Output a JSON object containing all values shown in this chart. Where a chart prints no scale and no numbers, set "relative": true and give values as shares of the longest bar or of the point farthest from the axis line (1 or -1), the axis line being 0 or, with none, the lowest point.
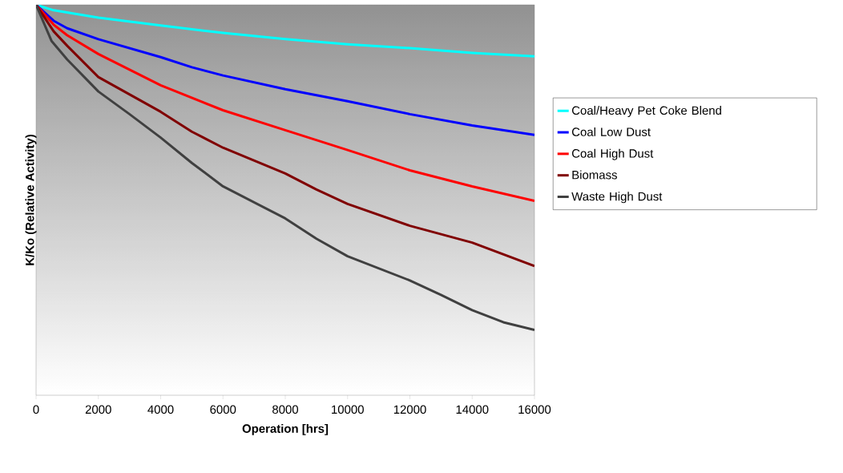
{
  "chart_data": {
    "type": "line",
    "relative": true,
    "xlabel": "Operation [hrs]",
    "ylabel": "K/Ko (Relative Activity)",
    "xlim": [
      0,
      16000
    ],
    "xticks": [
      0,
      2000,
      4000,
      6000,
      8000,
      10000,
      12000,
      14000,
      16000
    ],
    "tick_labels": "x",
    "grid": false,
    "legend": "right",
    "marker": "none",
    "line_style": "solid",
    "series": [
      {
        "name": "Coal/Heavy Pet Coke Blend",
        "color": "#00ffff",
        "x": [
          0,
          566,
          2000,
          4000,
          6000,
          8000,
          10000,
          12000,
          14000,
          16000
        ],
        "values": [
          1,
          0.986,
          0.967,
          0.947,
          0.928,
          0.912,
          0.899,
          0.889,
          0.877,
          0.868
        ]
      },
      {
        "name": "Coal Low Dust",
        "color": "#0000ff",
        "x": [
          0,
          566,
          1000,
          2000,
          4000,
          5000,
          6000,
          8000,
          10000,
          12000,
          14000,
          16000
        ],
        "values": [
          1,
          0.959,
          0.94,
          0.912,
          0.866,
          0.84,
          0.819,
          0.784,
          0.753,
          0.72,
          0.691,
          0.667
        ]
      },
      {
        "name": "Coal High Dust",
        "color": "#ff0000",
        "x": [
          0,
          566,
          1000,
          2000,
          4000,
          6000,
          8000,
          10000,
          12000,
          14000,
          16000
        ],
        "values": [
          1,
          0.949,
          0.922,
          0.874,
          0.794,
          0.73,
          0.679,
          0.628,
          0.576,
          0.535,
          0.498
        ]
      },
      {
        "name": "Biomass",
        "color": "#800000",
        "x": [
          0,
          566,
          1000,
          2000,
          4000,
          5000,
          6000,
          8000,
          9000,
          10000,
          12000,
          14000,
          16000
        ],
        "values": [
          1,
          0.932,
          0.895,
          0.815,
          0.726,
          0.675,
          0.634,
          0.568,
          0.527,
          0.49,
          0.434,
          0.391,
          0.331
        ]
      },
      {
        "name": "Waste High Dust",
        "color": "#404040",
        "x": [
          0,
          500,
          1000,
          2000,
          3000,
          4000,
          5000,
          6000,
          8000,
          9000,
          10000,
          12000,
          13000,
          14000,
          15000,
          16000
        ],
        "values": [
          1,
          0.907,
          0.86,
          0.778,
          0.72,
          0.66,
          0.595,
          0.535,
          0.453,
          0.401,
          0.356,
          0.294,
          0.257,
          0.218,
          0.187,
          0.167
        ]
      }
    ]
  }
}
